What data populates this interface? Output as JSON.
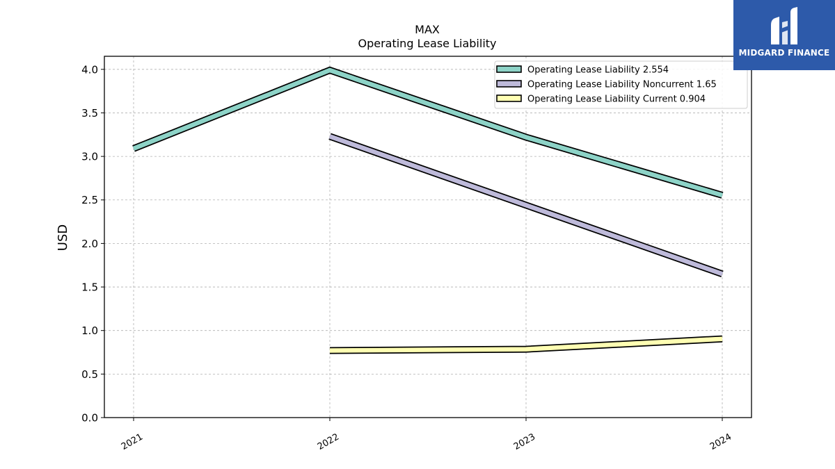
{
  "logo": {
    "name": "MIDGARD FINANCE"
  },
  "chart_data": {
    "type": "line",
    "title": "MAX",
    "subtitle": "Operating Lease Liability",
    "xlabel": "",
    "ylabel": "USD",
    "categories": [
      "2021",
      "2022",
      "2023",
      "2024"
    ],
    "ylim": [
      0,
      4.15
    ],
    "yticks": [
      "0.0",
      "0.5",
      "1.0",
      "1.5",
      "2.0",
      "2.5",
      "3.0",
      "3.5",
      "4.0"
    ],
    "grid": true,
    "legend_position": "top-right",
    "series": [
      {
        "name": "Operating Lease Liability",
        "legend": "Operating Lease Liability  2.554",
        "color": "#8dd3c7",
        "values": [
          3.09,
          3.99,
          3.22,
          2.554
        ]
      },
      {
        "name": "Operating Lease Liability Noncurrent",
        "legend": "Operating Lease Liability Noncurrent  1.65",
        "color": "#bebada",
        "values": [
          null,
          3.23,
          2.44,
          1.65
        ]
      },
      {
        "name": "Operating Lease Liability Current",
        "legend": "Operating Lease Liability Current  0.904",
        "color": "#ffffb3",
        "values": [
          null,
          0.77,
          0.785,
          0.904
        ]
      }
    ]
  }
}
